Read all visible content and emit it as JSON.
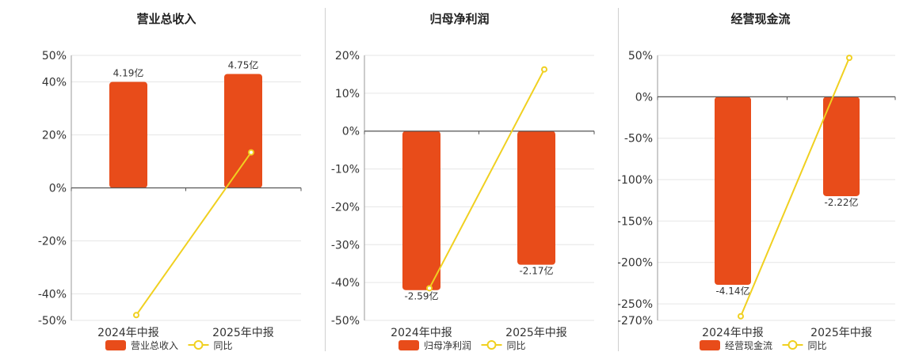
{
  "series_colors": {
    "bar": "#e84c1a",
    "line": "#f0d020"
  },
  "chart_data": [
    {
      "type": "bar",
      "title": "营业总收入",
      "categories": [
        "2024年中报",
        "2025年中报"
      ],
      "series": [
        {
          "name": "营业总收入",
          "type": "bar",
          "values": [
            4.19,
            4.75
          ],
          "labels": [
            "4.19亿",
            "4.75亿"
          ]
        },
        {
          "name": "同比",
          "type": "line",
          "values": [
            -48,
            13.4
          ]
        }
      ],
      "yticks": [
        50,
        40,
        20,
        0,
        -20,
        -40,
        -50
      ],
      "ytick_labels": [
        "50%",
        "40%",
        "20%",
        "0%",
        "-20%",
        "-40%",
        "-50%"
      ],
      "ylim": [
        -50,
        50
      ],
      "bar_pct": [
        40,
        43
      ],
      "legend": "bottom"
    },
    {
      "type": "bar",
      "title": "归母净利润",
      "categories": [
        "2024年中报",
        "2025年中报"
      ],
      "series": [
        {
          "name": "归母净利润",
          "type": "bar",
          "values": [
            -2.59,
            -2.17
          ],
          "labels": [
            "-2.59亿",
            "-2.17亿"
          ]
        },
        {
          "name": "同比",
          "type": "line",
          "values": [
            -41.5,
            16.3
          ]
        }
      ],
      "yticks": [
        20,
        10,
        0,
        -10,
        -20,
        -30,
        -40,
        -50
      ],
      "ytick_labels": [
        "20%",
        "10%",
        "0%",
        "-10%",
        "-20%",
        "-30%",
        "-40%",
        "-50%"
      ],
      "ylim": [
        -50,
        20
      ],
      "bar_pct": [
        -42,
        -35.3
      ],
      "legend": "bottom"
    },
    {
      "type": "bar",
      "title": "经营现金流",
      "categories": [
        "2024年中报",
        "2025年中报"
      ],
      "series": [
        {
          "name": "经营现金流",
          "type": "bar",
          "values": [
            -4.14,
            -2.22
          ],
          "labels": [
            "-4.14亿",
            "-2.22亿"
          ]
        },
        {
          "name": "同比",
          "type": "line",
          "values": [
            -265,
            47
          ]
        }
      ],
      "yticks": [
        50,
        0,
        -50,
        -100,
        -150,
        -200,
        -250,
        -270
      ],
      "ytick_labels": [
        "50%",
        "0%",
        "-50%",
        "-100%",
        "-150%",
        "-200%",
        "-250%",
        "-270%"
      ],
      "ylim": [
        -270,
        50
      ],
      "bar_pct": [
        -227,
        -120
      ],
      "legend": "bottom"
    }
  ]
}
